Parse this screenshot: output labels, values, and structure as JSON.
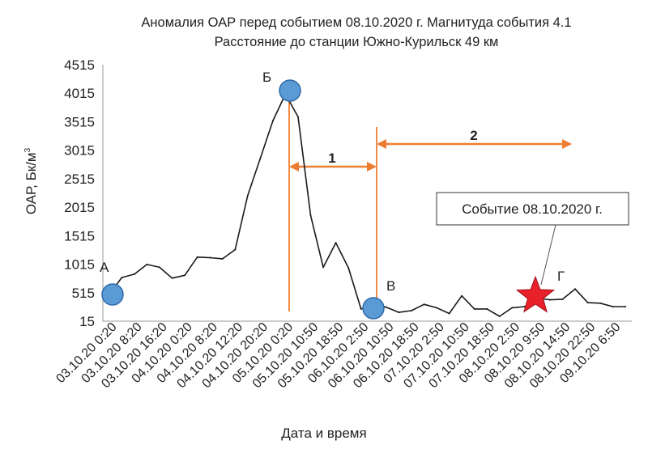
{
  "chart_data": {
    "type": "line",
    "title_line1": "Аномалия ОАР перед событием 08.10.2020 г. Магнитуда события 4.1",
    "title_line2": "Расстояние до станции Южно-Курильск 49 км",
    "xlabel": "Дата и время",
    "ylabel": "ОАР, Бк/м",
    "ylabel_superscript": "3",
    "ylim": [
      15,
      4515
    ],
    "yticks": [
      15,
      515,
      1015,
      1515,
      2015,
      2515,
      3015,
      3515,
      4015,
      4515
    ],
    "xtick_labels": [
      "03.10.20  0:20",
      "03.10.20  8:20",
      "03.10.20  16:20",
      "04.10.20  0:20",
      "04.10.20  8:20",
      "04.10.20  12:20",
      "04.10.20  20:20",
      "05.10.20  0:20",
      "05.10.20  10:50",
      "05.10.20  18:50",
      "06.10.20  2:50",
      "06.10.20  10:50",
      "06.10.20  18:50",
      "07.10.20  2:50",
      "07.10.20  10:50",
      "07.10.20  18:50",
      "08.10.20  2:50",
      "08.10.20  9:50",
      "08.10.20  14:50",
      "08.10.20  22:50",
      "09.10.20  6:50"
    ],
    "values": [
      480,
      780,
      840,
      1010,
      960,
      770,
      820,
      1140,
      1130,
      1110,
      1270,
      2220,
      2870,
      3530,
      4000,
      3600,
      1870,
      960,
      1390,
      950,
      230,
      310,
      260,
      170,
      200,
      310,
      250,
      150,
      460,
      230,
      230,
      100,
      250,
      270,
      420,
      390,
      400,
      580,
      340,
      330,
      270,
      270
    ],
    "grid": false,
    "legend": "none",
    "line_color": "#1a1a1a"
  },
  "annotations": {
    "point_a": "А",
    "point_b": "Б",
    "point_v": "В",
    "point_g": "Г",
    "interval_1": "1",
    "interval_2": "2",
    "event_callout": "Событие 08.10.2020 г."
  },
  "colors": {
    "marker_fill": "#5b9bd5",
    "marker_stroke": "#2e6aa8",
    "interval_color": "#ed7d31",
    "star_fill": "#e8202a",
    "star_stroke": "#a01018"
  }
}
